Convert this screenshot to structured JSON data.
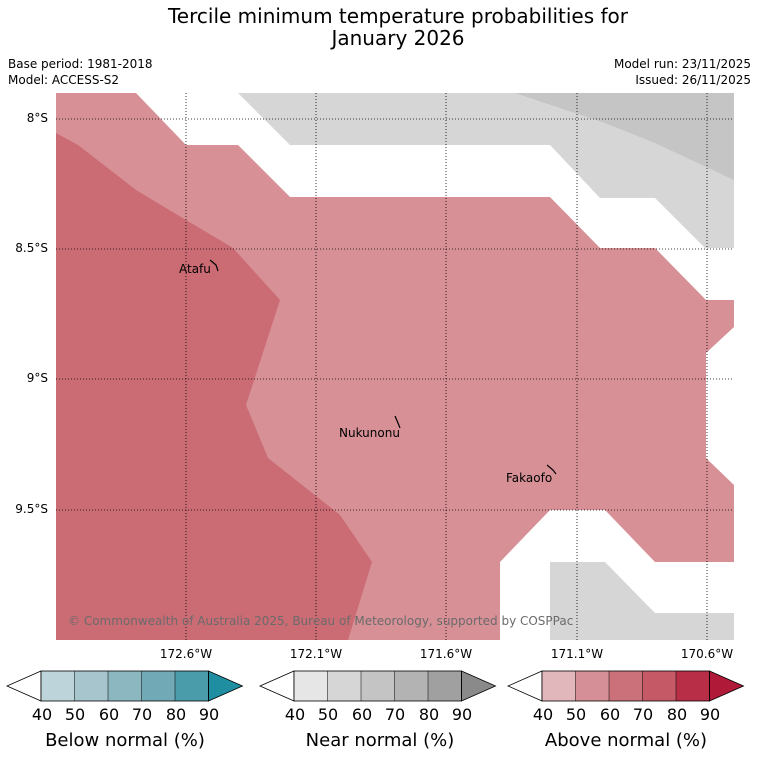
{
  "title_line1": "Tercile minimum temperature probabilities for",
  "title_line2": "January 2026",
  "meta": {
    "base_period": "Base period: 1981-2018",
    "model": "Model: ACCESS-S2",
    "model_run": "Model run: 23/11/2025",
    "issued": "Issued: 26/11/2025"
  },
  "axes": {
    "latitudes": [
      "8°S",
      "8.5°S",
      "9°S",
      "9.5°S"
    ],
    "longitudes": [
      "172.6°W",
      "172.1°W",
      "171.6°W",
      "171.1°W",
      "170.6°W"
    ]
  },
  "places": [
    "Atafu",
    "Nukunonu",
    "Fakaofo"
  ],
  "copyright": "© Commonwealth of Australia 2025, Bureau of Meteorology, supported by COSPPac",
  "legends": [
    {
      "title": "Below normal (%)",
      "ticks": [
        "40",
        "50",
        "60",
        "70",
        "80",
        "90"
      ],
      "colors": [
        "#bcd4da",
        "#a6c5cc",
        "#8cb7c1",
        "#72a9b6",
        "#4b9cab",
        "#1f8ea1"
      ]
    },
    {
      "title": "Near normal (%)",
      "ticks": [
        "40",
        "50",
        "60",
        "70",
        "80",
        "90"
      ],
      "colors": [
        "#e6e6e6",
        "#d6d6d6",
        "#c4c4c4",
        "#b3b3b3",
        "#a0a0a0",
        "#8a8a8a"
      ]
    },
    {
      "title": "Above normal (%)",
      "ticks": [
        "40",
        "50",
        "60",
        "70",
        "80",
        "90"
      ],
      "colors": [
        "#e2b7bc",
        "#d58f96",
        "#cb7179",
        "#c55966",
        "#b92e47",
        "#b01a38"
      ]
    }
  ],
  "map_colors": {
    "above_50": "#d69096",
    "above_60": "#cb6b74",
    "near_50": "#d6d6d6",
    "near_60": "#c5c5c5"
  }
}
